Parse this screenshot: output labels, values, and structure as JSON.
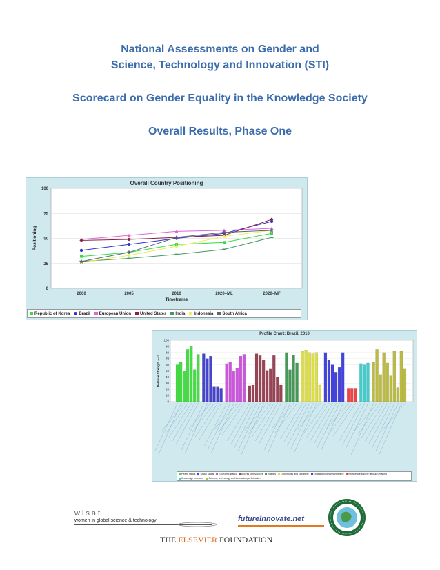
{
  "header": {
    "title_line1": "National Assessments on Gender and",
    "title_line2": "Science, Technology and Innovation (STI)",
    "subtitle": "Scorecard on Gender Equality in the Knowledge Society",
    "phase": "Overall Results, Phase One"
  },
  "chart_data": [
    {
      "type": "line",
      "title": "Overall Country Positioning",
      "xlabel": "Timeframe",
      "ylabel": "Positioning",
      "categories": [
        "2000",
        "2005",
        "2010",
        "2020–ML",
        "2020–MF"
      ],
      "ylim": [
        0,
        100
      ],
      "yticks": [
        "0",
        "25",
        "50",
        "75",
        "100"
      ],
      "grid": true,
      "legend_position": "bottom",
      "series": [
        {
          "name": "Republic of Korea",
          "color": "#33dd44",
          "marker": "square",
          "values": [
            32,
            36,
            44,
            46,
            55
          ]
        },
        {
          "name": "Brazil",
          "color": "#3333cc",
          "marker": "circle",
          "values": [
            38,
            44,
            50,
            55,
            67
          ]
        },
        {
          "name": "European Union",
          "color": "#dd66dd",
          "marker": "triangle",
          "values": [
            49,
            53,
            57,
            58,
            60
          ]
        },
        {
          "name": "United States",
          "color": "#882244",
          "marker": "diamond",
          "values": [
            48,
            49,
            51,
            53,
            69
          ]
        },
        {
          "name": "India",
          "color": "#449966",
          "marker": "dash",
          "values": [
            27,
            30,
            34,
            39,
            51
          ]
        },
        {
          "name": "Indonesia",
          "color": "#eeee55",
          "marker": "star",
          "values": [
            26,
            33,
            42,
            52,
            58
          ]
        },
        {
          "name": "South Africa",
          "color": "#556677",
          "marker": "star",
          "values": [
            27,
            36,
            51,
            56,
            58
          ]
        }
      ]
    },
    {
      "type": "bar",
      "title": "Profile Chart: Brazil, 2010",
      "ylabel": "Relative Strength ---->",
      "ylim": [
        0,
        100
      ],
      "yticks": [
        "0",
        "10",
        "20",
        "30",
        "40",
        "50",
        "60",
        "70",
        "80",
        "90",
        "100"
      ],
      "legend_position": "bottom",
      "series": [
        {
          "name": "Health status",
          "color": "#44dd44",
          "values": [
            60,
            65,
            50,
            85,
            90,
            52,
            77
          ]
        },
        {
          "name": "Social status",
          "color": "#4444cc",
          "values": [
            78,
            70,
            74,
            24,
            24,
            22
          ]
        },
        {
          "name": "Economic status",
          "color": "#cc55dd",
          "values": [
            62,
            65,
            50,
            55,
            74,
            77
          ]
        },
        {
          "name": "Access to resources",
          "color": "#994455",
          "values": [
            26,
            27,
            78,
            75,
            68,
            51,
            53,
            75,
            40,
            27
          ]
        },
        {
          "name": "Agency",
          "color": "#449955",
          "values": [
            80,
            52,
            76,
            63
          ]
        },
        {
          "name": "Opportunity and capability",
          "color": "#dddd44",
          "values": [
            82,
            84,
            80,
            78,
            80,
            27
          ]
        },
        {
          "name": "Enabling policy environment",
          "color": "#4444dd",
          "values": [
            80,
            68,
            60,
            48,
            56,
            80
          ]
        },
        {
          "name": "Knowledge society decision-making",
          "color": "#ee4444",
          "values": [
            22,
            22,
            22
          ]
        },
        {
          "name": "Knowledge economy",
          "color": "#44cccc",
          "values": [
            62,
            60,
            63
          ]
        },
        {
          "name": "Science, technology and innovation participation",
          "color": "#bbbb44",
          "values": [
            64,
            85,
            44,
            80,
            63,
            42,
            82,
            23,
            82,
            53
          ]
        }
      ]
    }
  ],
  "footer": {
    "wisat_name": "wisat",
    "wisat_tagline": "women in global science & technology",
    "future_innovate": "futureInnovate.net",
    "elsevier_prefix": "THE ",
    "elsevier_brand": "ELSEVIER",
    "elsevier_suffix": " FOUNDATION"
  }
}
